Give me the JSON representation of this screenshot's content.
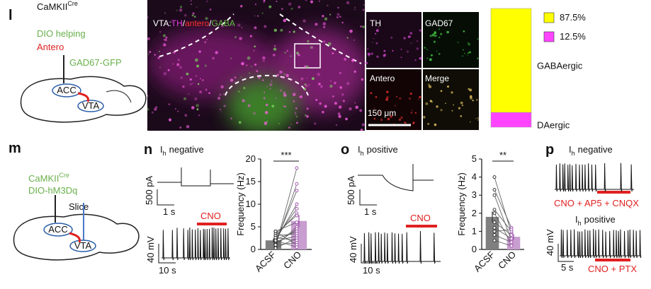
{
  "panels": {
    "l": {
      "label": "l",
      "schematic": {
        "line1": "CaMKII",
        "superscript": "Cre",
        "line2": "DIO helping",
        "line3": "Antero",
        "line4": "GAD67-GFP",
        "regions": [
          "ACC",
          "VTA"
        ]
      },
      "image": {
        "title": [
          "VTA:",
          "TH",
          "/",
          "antero",
          "/",
          "GABA"
        ],
        "insets": [
          "TH",
          "GAD67",
          "Antero",
          "Merge"
        ],
        "scale_bar": "150 μm"
      }
    },
    "m": {
      "label": "m",
      "line1": "CaMKII",
      "superscript": "Cre",
      "line2": "DIO-hM3Dq",
      "slice": "Slice",
      "regions": [
        "ACC",
        "VTA"
      ]
    },
    "n": {
      "label": "n",
      "title": {
        "main": "I",
        "sub": "h",
        "rest": "negative"
      },
      "current_scale": "500 pA",
      "current_time": "1 s",
      "drug": "CNO",
      "voltage_scale": "40 mV",
      "voltage_time": "10 s"
    },
    "o": {
      "label": "o",
      "title": {
        "main": "I",
        "sub": "h",
        "rest": "positive"
      },
      "current_scale": "500 pA",
      "current_time": "1 s",
      "drug": "CNO",
      "voltage_scale": "40 mV",
      "voltage_time": "10 s"
    },
    "p": {
      "label": "p",
      "titles": [
        {
          "main": "I",
          "sub": "h",
          "rest": "negative"
        },
        {
          "main": "I",
          "sub": "h",
          "rest": "positive"
        }
      ],
      "drugs": [
        "CNO + AP5 + CNQX",
        "CNO + PTX"
      ],
      "voltage_scale": "40 mV",
      "voltage_time": "5 s"
    }
  },
  "chart_data": [
    {
      "type": "stacked-bar",
      "ylim": [
        0,
        100
      ],
      "series": [
        {
          "name": "DAergic",
          "color": "#ff44ff",
          "values": [
            12.5
          ],
          "value_labels": [
            "12.5%"
          ]
        },
        {
          "name": "GABAergic",
          "color": "#ffff00",
          "values": [
            87.5
          ],
          "value_labels": [
            "87.5%"
          ]
        }
      ]
    },
    {
      "type": "bar",
      "ylabel": "Frequency (Hz)",
      "categories": [
        "ACSF",
        "CNO"
      ],
      "values": [
        2.0,
        6.3
      ],
      "errors": [
        0.4,
        1.3
      ],
      "colors": [
        "#7f7f7f",
        "#c89ed0"
      ],
      "ylim": [
        0,
        20
      ],
      "yticks": [
        0,
        5,
        10,
        15,
        20
      ],
      "annotation": "***",
      "points": [
        [
          0.5,
          1,
          1.5,
          2,
          2.5,
          3,
          3.5,
          4,
          0.8,
          1.2,
          2.2,
          3,
          1.8,
          0.3,
          2.6,
          1,
          4,
          2
        ],
        [
          18,
          14.5,
          13,
          10,
          9,
          8,
          7.5,
          6,
          5,
          4.5,
          4,
          3.5,
          3,
          2.5,
          2,
          1.5,
          1,
          0.5
        ]
      ]
    },
    {
      "type": "bar",
      "ylabel": "Frequency (Hz)",
      "categories": [
        "ACSF",
        "CNO"
      ],
      "values": [
        1.8,
        0.7
      ],
      "errors": [
        0.3,
        0.15
      ],
      "colors": [
        "#7f7f7f",
        "#c89ed0"
      ],
      "ylim": [
        0,
        5
      ],
      "yticks": [
        0,
        1,
        2,
        3,
        4,
        5
      ],
      "annotation": "**",
      "points": [
        [
          4,
          3.3,
          3,
          2.2,
          2,
          1.5,
          1.2,
          1,
          0.8,
          0.5
        ],
        [
          0.9,
          1.2,
          0.5,
          1.0,
          0.3,
          0.8,
          0.6,
          1.1,
          0.4,
          0.2
        ]
      ]
    }
  ]
}
